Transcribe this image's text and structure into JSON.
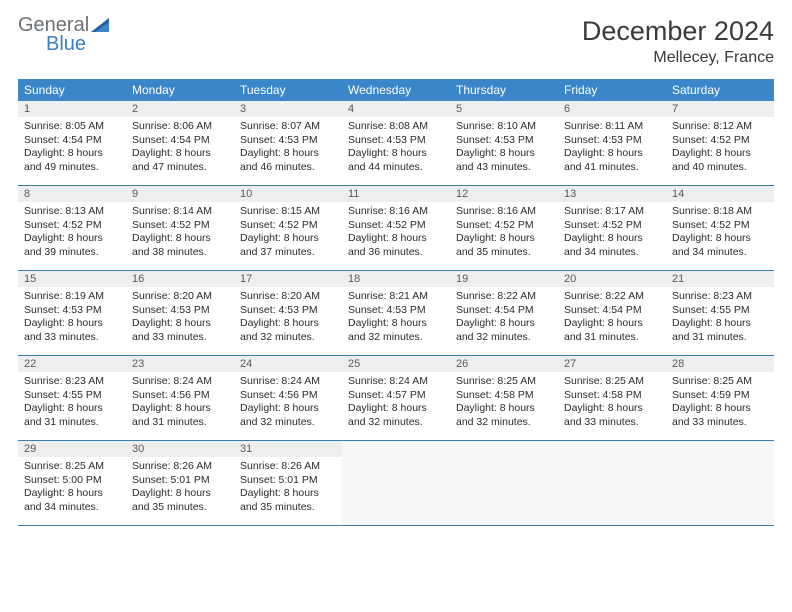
{
  "logo": {
    "text1": "General",
    "text2": "Blue"
  },
  "title": "December 2024",
  "location": "Mellecey, France",
  "header_bg": "#3a86c8",
  "daynum_bg": "#eceeef",
  "row_border": "#3a7fb0",
  "weekdays": [
    "Sunday",
    "Monday",
    "Tuesday",
    "Wednesday",
    "Thursday",
    "Friday",
    "Saturday"
  ],
  "days": [
    {
      "n": 1,
      "sr": "8:05 AM",
      "ss": "4:54 PM",
      "dl": "8 hours and 49 minutes."
    },
    {
      "n": 2,
      "sr": "8:06 AM",
      "ss": "4:54 PM",
      "dl": "8 hours and 47 minutes."
    },
    {
      "n": 3,
      "sr": "8:07 AM",
      "ss": "4:53 PM",
      "dl": "8 hours and 46 minutes."
    },
    {
      "n": 4,
      "sr": "8:08 AM",
      "ss": "4:53 PM",
      "dl": "8 hours and 44 minutes."
    },
    {
      "n": 5,
      "sr": "8:10 AM",
      "ss": "4:53 PM",
      "dl": "8 hours and 43 minutes."
    },
    {
      "n": 6,
      "sr": "8:11 AM",
      "ss": "4:53 PM",
      "dl": "8 hours and 41 minutes."
    },
    {
      "n": 7,
      "sr": "8:12 AM",
      "ss": "4:52 PM",
      "dl": "8 hours and 40 minutes."
    },
    {
      "n": 8,
      "sr": "8:13 AM",
      "ss": "4:52 PM",
      "dl": "8 hours and 39 minutes."
    },
    {
      "n": 9,
      "sr": "8:14 AM",
      "ss": "4:52 PM",
      "dl": "8 hours and 38 minutes."
    },
    {
      "n": 10,
      "sr": "8:15 AM",
      "ss": "4:52 PM",
      "dl": "8 hours and 37 minutes."
    },
    {
      "n": 11,
      "sr": "8:16 AM",
      "ss": "4:52 PM",
      "dl": "8 hours and 36 minutes."
    },
    {
      "n": 12,
      "sr": "8:16 AM",
      "ss": "4:52 PM",
      "dl": "8 hours and 35 minutes."
    },
    {
      "n": 13,
      "sr": "8:17 AM",
      "ss": "4:52 PM",
      "dl": "8 hours and 34 minutes."
    },
    {
      "n": 14,
      "sr": "8:18 AM",
      "ss": "4:52 PM",
      "dl": "8 hours and 34 minutes."
    },
    {
      "n": 15,
      "sr": "8:19 AM",
      "ss": "4:53 PM",
      "dl": "8 hours and 33 minutes."
    },
    {
      "n": 16,
      "sr": "8:20 AM",
      "ss": "4:53 PM",
      "dl": "8 hours and 33 minutes."
    },
    {
      "n": 17,
      "sr": "8:20 AM",
      "ss": "4:53 PM",
      "dl": "8 hours and 32 minutes."
    },
    {
      "n": 18,
      "sr": "8:21 AM",
      "ss": "4:53 PM",
      "dl": "8 hours and 32 minutes."
    },
    {
      "n": 19,
      "sr": "8:22 AM",
      "ss": "4:54 PM",
      "dl": "8 hours and 32 minutes."
    },
    {
      "n": 20,
      "sr": "8:22 AM",
      "ss": "4:54 PM",
      "dl": "8 hours and 31 minutes."
    },
    {
      "n": 21,
      "sr": "8:23 AM",
      "ss": "4:55 PM",
      "dl": "8 hours and 31 minutes."
    },
    {
      "n": 22,
      "sr": "8:23 AM",
      "ss": "4:55 PM",
      "dl": "8 hours and 31 minutes."
    },
    {
      "n": 23,
      "sr": "8:24 AM",
      "ss": "4:56 PM",
      "dl": "8 hours and 31 minutes."
    },
    {
      "n": 24,
      "sr": "8:24 AM",
      "ss": "4:56 PM",
      "dl": "8 hours and 32 minutes."
    },
    {
      "n": 25,
      "sr": "8:24 AM",
      "ss": "4:57 PM",
      "dl": "8 hours and 32 minutes."
    },
    {
      "n": 26,
      "sr": "8:25 AM",
      "ss": "4:58 PM",
      "dl": "8 hours and 32 minutes."
    },
    {
      "n": 27,
      "sr": "8:25 AM",
      "ss": "4:58 PM",
      "dl": "8 hours and 33 minutes."
    },
    {
      "n": 28,
      "sr": "8:25 AM",
      "ss": "4:59 PM",
      "dl": "8 hours and 33 minutes."
    },
    {
      "n": 29,
      "sr": "8:25 AM",
      "ss": "5:00 PM",
      "dl": "8 hours and 34 minutes."
    },
    {
      "n": 30,
      "sr": "8:26 AM",
      "ss": "5:01 PM",
      "dl": "8 hours and 35 minutes."
    },
    {
      "n": 31,
      "sr": "8:26 AM",
      "ss": "5:01 PM",
      "dl": "8 hours and 35 minutes."
    }
  ],
  "labels": {
    "sunrise": "Sunrise:",
    "sunset": "Sunset:",
    "daylight": "Daylight:"
  },
  "layout": {
    "first_weekday_index": 0,
    "trailing_empty": 4
  }
}
